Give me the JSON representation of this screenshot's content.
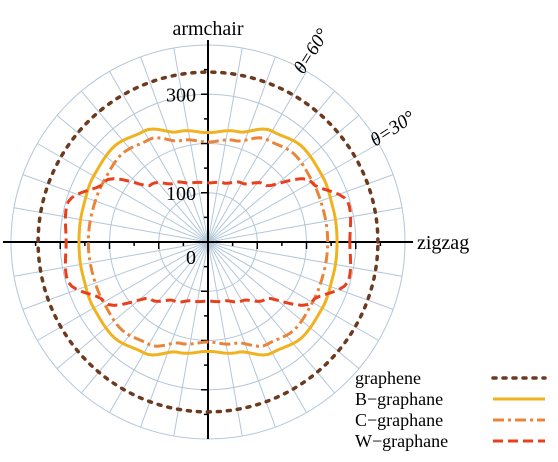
{
  "chart_data": {
    "type": "polar-line",
    "axis_labels": {
      "vertical": "armchair",
      "horizontal": "zigzag"
    },
    "angle_labels": [
      "θ=60°",
      "θ=30°"
    ],
    "radial_ticks": [
      {
        "value": 0,
        "label": "0"
      },
      {
        "value": 100,
        "label": "100"
      },
      {
        "value": 300,
        "label": "300"
      }
    ],
    "radial_range": [
      0,
      400
    ],
    "angular_grid_step_deg": 10,
    "radial_grid_step": 100,
    "grid": true,
    "legend_position": "bottom-right",
    "series": [
      {
        "name": "graphene",
        "color": "#6b3a1f",
        "style": "dotted",
        "angles_deg": [
          0,
          15,
          30,
          45,
          60,
          75,
          90
        ],
        "r": [
          345,
          345,
          345,
          345,
          345,
          345,
          345
        ]
      },
      {
        "name": "B−graphane",
        "color": "#f0b21e",
        "style": "solid",
        "angles_deg": [
          0,
          15,
          30,
          45,
          60,
          75,
          90
        ],
        "r": [
          262,
          263,
          268,
          272,
          260,
          232,
          222
        ]
      },
      {
        "name": "C−graphane",
        "color": "#e8853a",
        "style": "dashdot",
        "angles_deg": [
          0,
          15,
          30,
          45,
          60,
          75,
          90
        ],
        "r": [
          243,
          243,
          245,
          250,
          240,
          213,
          203
        ]
      },
      {
        "name": "W−graphane",
        "color": "#e8401c",
        "style": "dashed",
        "angles_deg": [
          0,
          15,
          30,
          45,
          60,
          75,
          90
        ],
        "r": [
          288,
          296,
          243,
          164,
          138,
          124,
          120
        ]
      }
    ]
  }
}
